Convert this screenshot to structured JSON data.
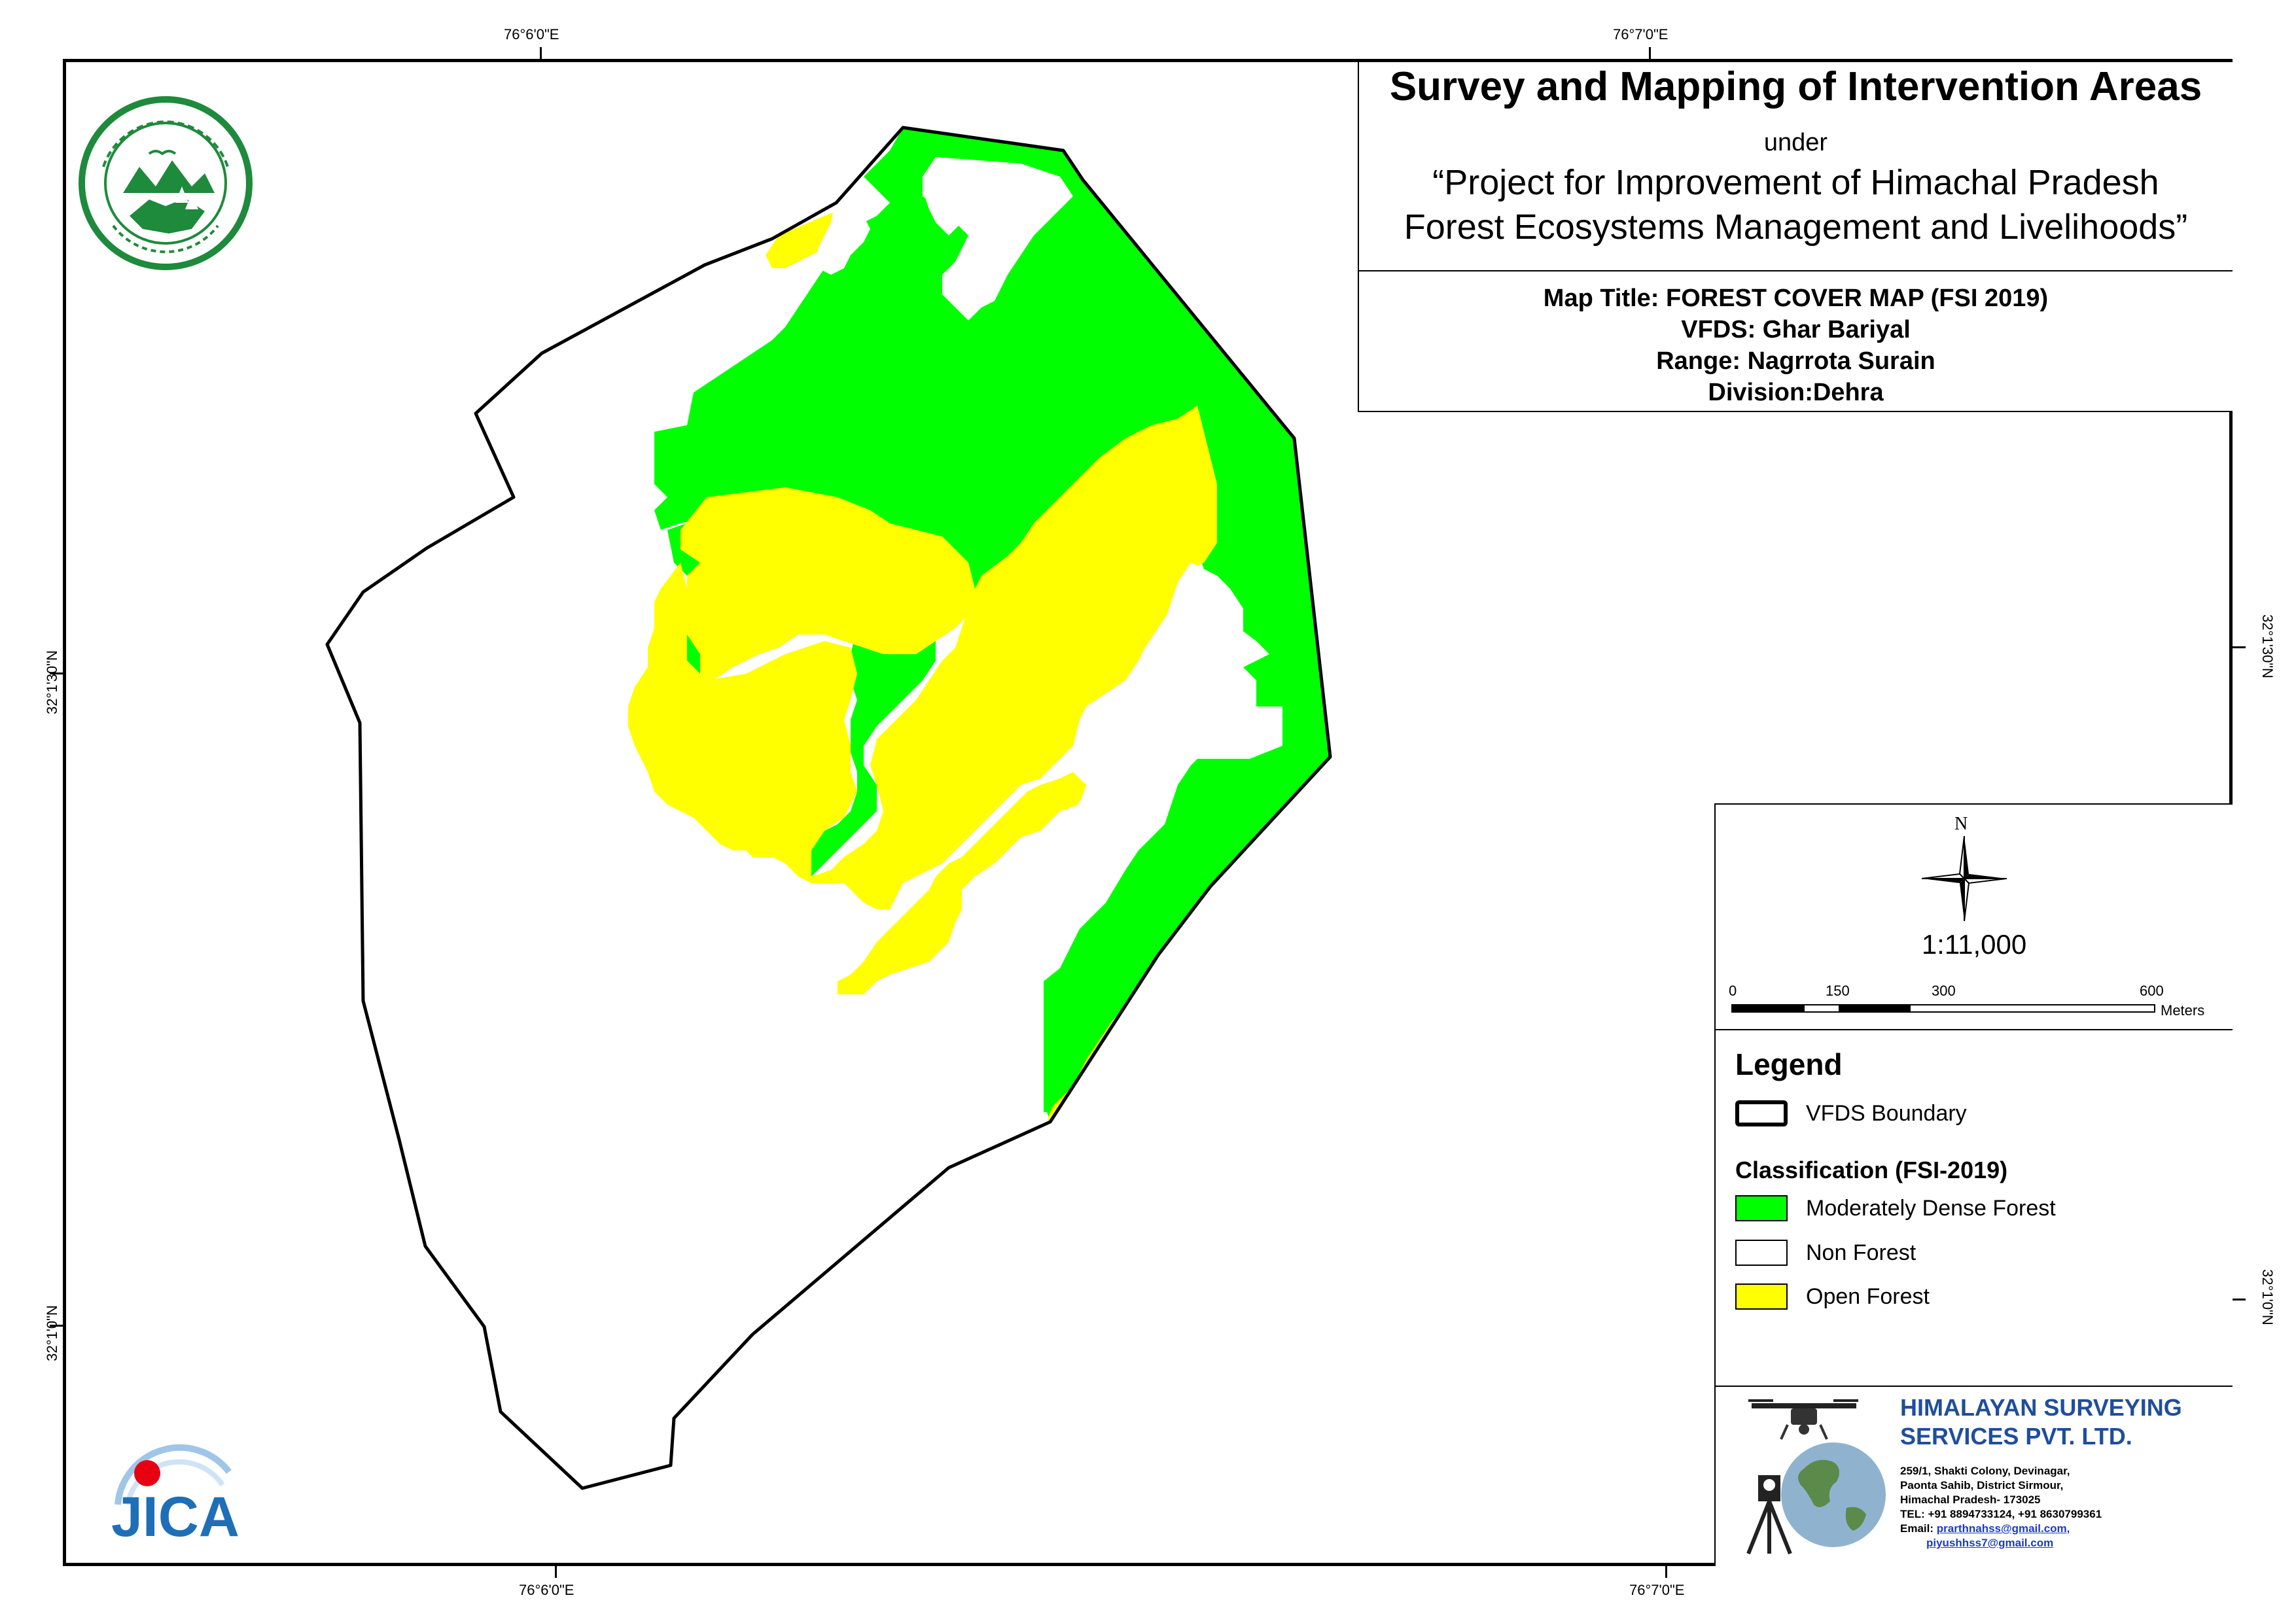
{
  "grid": {
    "top_left": "76°6'0\"E",
    "top_right": "76°7'0\"E",
    "bottom_left": "76°6'0\"E",
    "bottom_right": "76°7'0\"E",
    "left_top": "32°1'30\"N",
    "left_bottom": "32°1'0\"N",
    "right_top": "32°1'30\"N",
    "right_bottom": "32°1'0\"N"
  },
  "title": {
    "main": "Survey and Mapping of Intervention Areas",
    "under": "under",
    "project_line1": "“Project for Improvement of Himachal Pradesh",
    "project_line2": "Forest Ecosystems Management and Livelihoods”",
    "map_title": "Map Title: FOREST COVER MAP (FSI 2019)",
    "vfds": "VFDS: Ghar Bariyal",
    "range": "Range: Nagrrota Surain",
    "division": "Division:Dehra"
  },
  "north_arrow": {
    "label": "N",
    "icon": "compass-rose-icon"
  },
  "scale": {
    "ratio": "1:11,000",
    "ticks": [
      "0",
      "150",
      "300",
      "600"
    ],
    "unit": "Meters"
  },
  "legend": {
    "title": "Legend",
    "boundary_label": "VFDS Boundary",
    "classification_title": "Classification (FSI-2019)",
    "classes": [
      {
        "label": "Moderately Dense Forest",
        "color": "#00ff00"
      },
      {
        "label": "Non Forest",
        "color": "#ffffff"
      },
      {
        "label": "Open Forest",
        "color": "#ffff00"
      }
    ]
  },
  "company": {
    "name_line1": "HIMALAYAN SURVEYING",
    "name_line2": "SERVICES PVT. LTD.",
    "address_line1": "259/1, Shakti Colony, Devinagar,",
    "address_line2": "Paonta Sahib, District Sirmour,",
    "address_line3": "Himachal Pradesh- 173025",
    "tel": "TEL: +91 8894733124, +91 8630799361",
    "email_label": "Email:",
    "email1": "prarthnahss@gmail.com,",
    "email2": "piyushhss7@gmail.com",
    "icons": [
      "drone-icon",
      "globe-icon",
      "total-station-icon"
    ]
  },
  "logos": {
    "forest_dept": "forest-department-seal-icon",
    "jica": "jica-logo-icon",
    "jica_text": "JICA"
  },
  "colors": {
    "moderately_dense": "#00ff00",
    "open_forest": "#ffff00",
    "non_forest": "#ffffff",
    "company_blue": "#1f4e9b",
    "seal_green": "#1e8a3c"
  }
}
